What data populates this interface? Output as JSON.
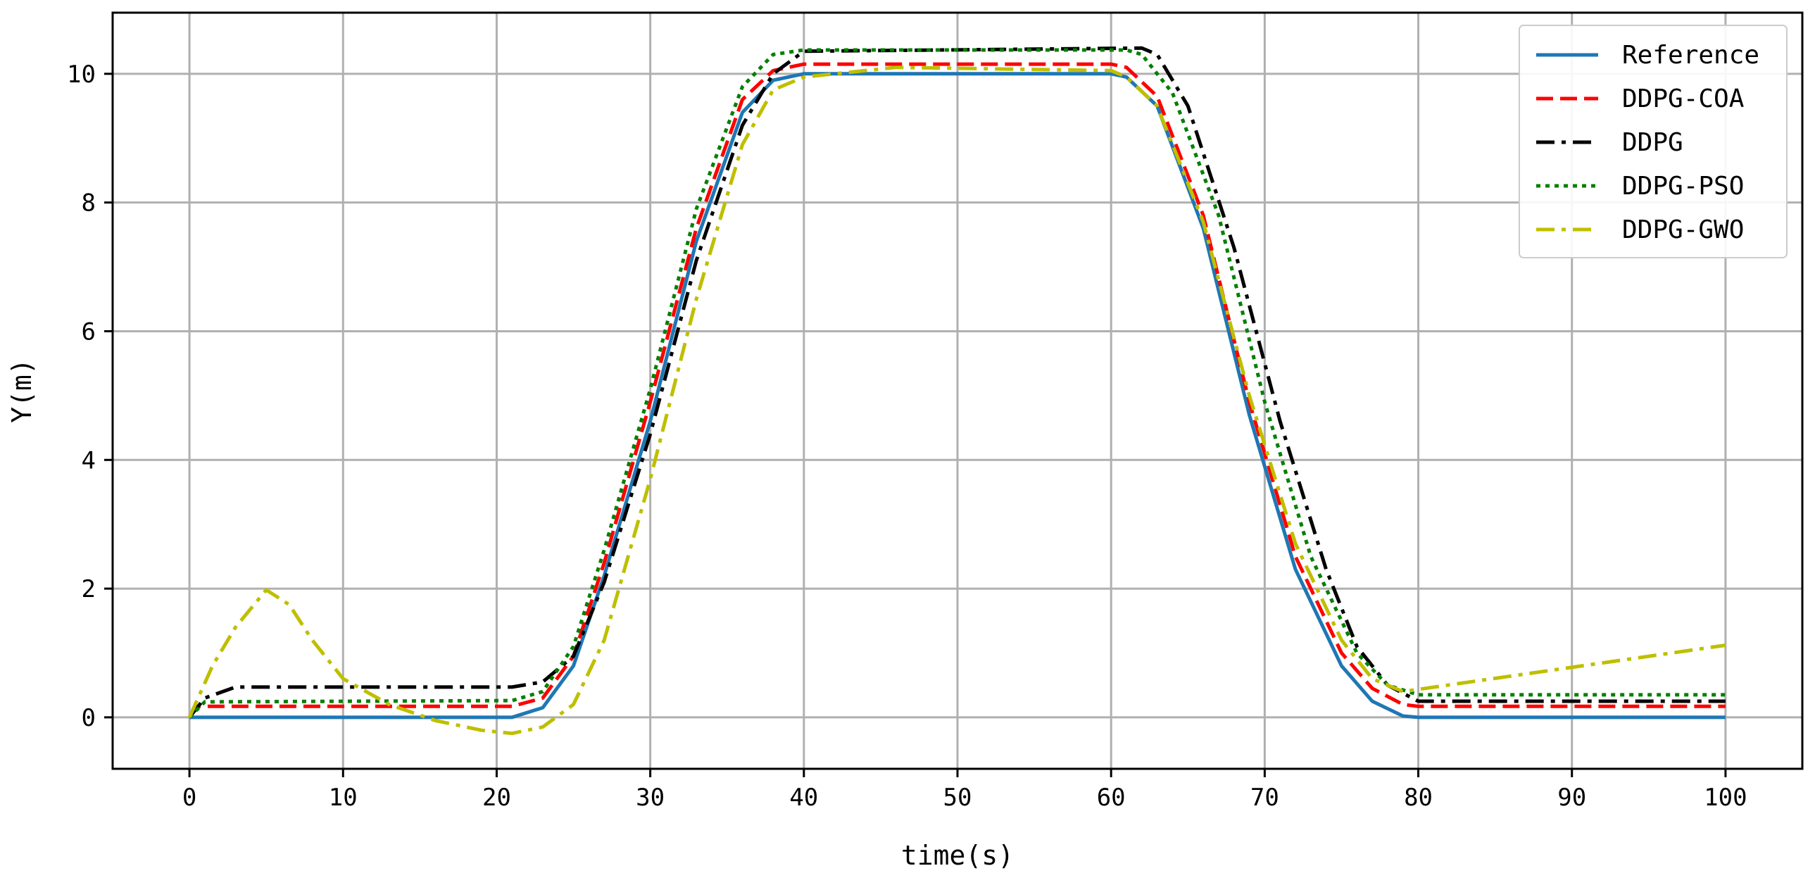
{
  "chart_data": {
    "type": "line",
    "title": "",
    "xlabel": "time(s)",
    "ylabel": "Y(m)",
    "xlim": [
      -5,
      105
    ],
    "ylim": [
      -0.8,
      10.95
    ],
    "xticks": [
      0,
      10,
      20,
      30,
      40,
      50,
      60,
      70,
      80,
      90,
      100
    ],
    "yticks": [
      0,
      2,
      4,
      6,
      8,
      10
    ],
    "grid": true,
    "legend_position": "top-right",
    "series": [
      {
        "name": "Reference",
        "color": "#1f77b4",
        "style": "solid",
        "points": [
          [
            0,
            0
          ],
          [
            21,
            0
          ],
          [
            23,
            0.15
          ],
          [
            25,
            0.8
          ],
          [
            27,
            2.2
          ],
          [
            30,
            4.6
          ],
          [
            33,
            7.4
          ],
          [
            36,
            9.4
          ],
          [
            38,
            9.9
          ],
          [
            40,
            10
          ],
          [
            60,
            10
          ],
          [
            61,
            9.95
          ],
          [
            63,
            9.5
          ],
          [
            66,
            7.6
          ],
          [
            69,
            4.7
          ],
          [
            72,
            2.3
          ],
          [
            75,
            0.8
          ],
          [
            77,
            0.25
          ],
          [
            79,
            0.02
          ],
          [
            80,
            0
          ],
          [
            100,
            0
          ]
        ]
      },
      {
        "name": "DDPG-COA",
        "color": "#ff0000",
        "style": "dashed",
        "points": [
          [
            0,
            0
          ],
          [
            0.5,
            0.17
          ],
          [
            21,
            0.17
          ],
          [
            23,
            0.3
          ],
          [
            25,
            0.95
          ],
          [
            27,
            2.4
          ],
          [
            30,
            4.9
          ],
          [
            33,
            7.6
          ],
          [
            36,
            9.6
          ],
          [
            38,
            10.05
          ],
          [
            40,
            10.15
          ],
          [
            60,
            10.15
          ],
          [
            61,
            10.1
          ],
          [
            63,
            9.65
          ],
          [
            66,
            7.8
          ],
          [
            69,
            4.9
          ],
          [
            72,
            2.5
          ],
          [
            75,
            1.0
          ],
          [
            77,
            0.45
          ],
          [
            79,
            0.2
          ],
          [
            80,
            0.17
          ],
          [
            100,
            0.17
          ]
        ]
      },
      {
        "name": "DDPG",
        "color": "#000000",
        "style": "dashdot",
        "points": [
          [
            0,
            0
          ],
          [
            1,
            0.3
          ],
          [
            3,
            0.47
          ],
          [
            21,
            0.47
          ],
          [
            23,
            0.55
          ],
          [
            25,
            0.95
          ],
          [
            27,
            2.1
          ],
          [
            30,
            4.4
          ],
          [
            33,
            7.1
          ],
          [
            36,
            9.2
          ],
          [
            38,
            10.0
          ],
          [
            40,
            10.35
          ],
          [
            62,
            10.4
          ],
          [
            63,
            10.3
          ],
          [
            65,
            9.5
          ],
          [
            68,
            7.3
          ],
          [
            71,
            4.6
          ],
          [
            74,
            2.3
          ],
          [
            76,
            1.1
          ],
          [
            78,
            0.5
          ],
          [
            80,
            0.25
          ],
          [
            100,
            0.25
          ]
        ]
      },
      {
        "name": "DDPG-PSO",
        "color": "#008000",
        "style": "dotted",
        "points": [
          [
            0,
            0
          ],
          [
            1,
            0.24
          ],
          [
            21,
            0.26
          ],
          [
            23,
            0.4
          ],
          [
            25,
            1.1
          ],
          [
            27,
            2.6
          ],
          [
            30,
            5.1
          ],
          [
            33,
            7.9
          ],
          [
            36,
            9.8
          ],
          [
            38,
            10.3
          ],
          [
            40,
            10.37
          ],
          [
            61,
            10.37
          ],
          [
            62,
            10.3
          ],
          [
            64,
            9.7
          ],
          [
            67,
            7.8
          ],
          [
            70,
            4.9
          ],
          [
            73,
            2.5
          ],
          [
            76,
            1.0
          ],
          [
            78,
            0.5
          ],
          [
            80,
            0.35
          ],
          [
            100,
            0.35
          ]
        ]
      },
      {
        "name": "DDPG-GWO",
        "color": "#bfbf00",
        "style": "dashdot",
        "points": [
          [
            0,
            0
          ],
          [
            1.5,
            0.8
          ],
          [
            3,
            1.4
          ],
          [
            5,
            1.98
          ],
          [
            6.5,
            1.75
          ],
          [
            8,
            1.2
          ],
          [
            10,
            0.6
          ],
          [
            13,
            0.2
          ],
          [
            16,
            -0.05
          ],
          [
            19,
            -0.2
          ],
          [
            21,
            -0.25
          ],
          [
            23,
            -0.15
          ],
          [
            25,
            0.2
          ],
          [
            27,
            1.2
          ],
          [
            30,
            3.7
          ],
          [
            33,
            6.5
          ],
          [
            36,
            8.9
          ],
          [
            38,
            9.75
          ],
          [
            40,
            9.95
          ],
          [
            46,
            10.1
          ],
          [
            60,
            10.05
          ],
          [
            61,
            9.95
          ],
          [
            63,
            9.5
          ],
          [
            66,
            7.7
          ],
          [
            69,
            5.0
          ],
          [
            72,
            2.7
          ],
          [
            75,
            1.2
          ],
          [
            77,
            0.6
          ],
          [
            79,
            0.4
          ],
          [
            100,
            1.12
          ]
        ]
      }
    ]
  }
}
